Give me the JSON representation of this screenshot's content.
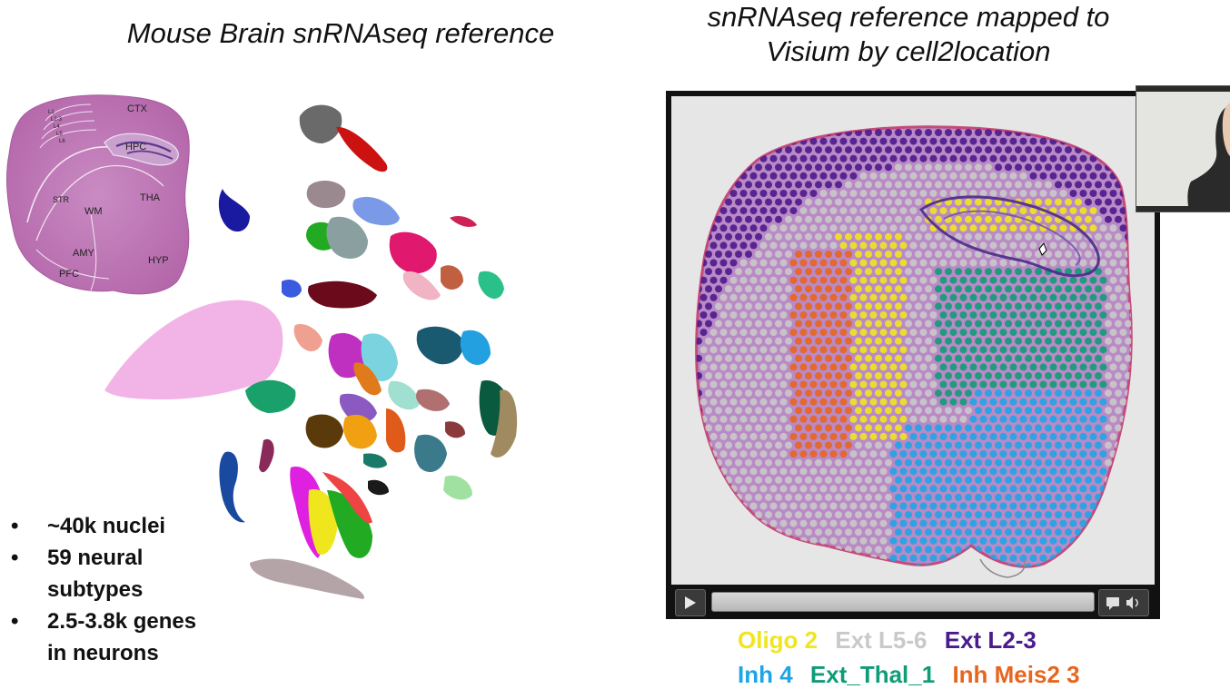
{
  "left_title": "Mouse Brain snRNAseq reference",
  "right_title_line1": "snRNAseq reference mapped to",
  "right_title_line2": "Visium by cell2location",
  "brain_labels": {
    "ctx": "CTX",
    "hpc": "HPC",
    "str": "STR",
    "wm": "WM",
    "tha": "THA",
    "amy": "AMY",
    "hyp": "HYP",
    "pfc": "PFC",
    "l1": "L1",
    "l23": "L2-3",
    "l4": "L4",
    "l5": "L5",
    "l6": "L6"
  },
  "bullets": [
    {
      "line1": "~40k nuclei",
      "line2": ""
    },
    {
      "line1": "59 neural",
      "line2": "subtypes"
    },
    {
      "line1": "2.5-3.8k genes",
      "line2": "in neurons"
    }
  ],
  "legend": [
    {
      "label": "Oligo 2",
      "color": "#f0e61e"
    },
    {
      "label": "Ext L5-6",
      "color": "#c9c9c9"
    },
    {
      "label": "Ext L2-3",
      "color": "#4b1a8c"
    },
    {
      "label": "Inh 4",
      "color": "#1ea5e6"
    },
    {
      "label": "Ext_Thal_1",
      "color": "#0f9c78"
    },
    {
      "label": "Inh Meis2 3",
      "color": "#e8651e"
    }
  ],
  "icons": {
    "play": "play-icon",
    "comment": "comment-icon",
    "volume": "volume-icon",
    "cursor": "hand-cursor-icon"
  }
}
